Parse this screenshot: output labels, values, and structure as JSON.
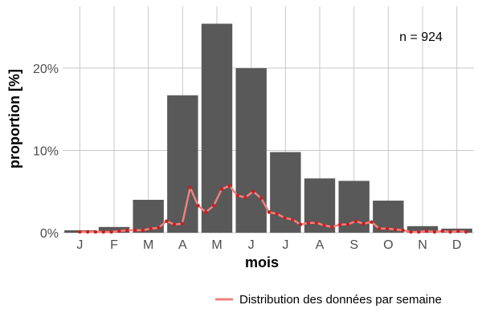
{
  "chart_data": {
    "type": "bar",
    "xlabel": "mois",
    "ylabel": "proportion [%]",
    "annotation": "n = 924",
    "categories": [
      "J",
      "F",
      "M",
      "A",
      "M",
      "J",
      "J",
      "A",
      "S",
      "O",
      "N",
      "D"
    ],
    "ylim": [
      0,
      27.5
    ],
    "y_ticks": [
      0,
      10,
      20
    ],
    "y_tick_labels": [
      "0%",
      "10%",
      "20%"
    ],
    "grid": true,
    "legend_position": "bottom-right",
    "bar_series": {
      "values": [
        0.3,
        0.7,
        4.0,
        16.7,
        25.4,
        20.0,
        9.8,
        6.6,
        6.3,
        3.9,
        0.8,
        0.5
      ]
    },
    "line_series": {
      "name": "Distribution des données par semaine",
      "x": [
        1.0,
        1.23,
        1.46,
        1.69,
        1.92,
        2.15,
        2.38,
        2.61,
        2.84,
        3.07,
        3.3,
        3.53,
        3.76,
        3.99,
        4.22,
        4.45,
        4.68,
        4.91,
        5.14,
        5.37,
        5.6,
        5.83,
        6.06,
        6.29,
        6.52,
        6.75,
        6.98,
        7.21,
        7.44,
        7.67,
        7.9,
        8.13,
        8.36,
        8.59,
        8.82,
        9.05,
        9.28,
        9.51,
        9.74,
        9.97,
        10.2,
        10.43,
        10.66,
        10.89,
        11.12,
        11.35,
        11.58,
        11.81,
        12.04,
        12.27
      ],
      "values": [
        0.1,
        0.1,
        0.1,
        0.1,
        0.1,
        0.2,
        0.3,
        0.3,
        0.3,
        0.5,
        0.6,
        1.4,
        1.0,
        1.1,
        5.5,
        3.3,
        2.5,
        3.3,
        5.3,
        5.7,
        4.5,
        4.3,
        5.0,
        4.2,
        2.5,
        2.3,
        1.8,
        1.6,
        1.0,
        1.2,
        1.2,
        0.9,
        0.7,
        1.0,
        1.0,
        1.4,
        1.1,
        1.3,
        0.5,
        0.5,
        0.4,
        0.3,
        0.1,
        0.1,
        0.2,
        0.1,
        0.2,
        0.1,
        0.2,
        0.1
      ]
    },
    "colors": {
      "bar": "#595959",
      "line": "#f08080",
      "line_points": "#cc1f1f",
      "grid": "#c8c8c8",
      "tick_label": "#4d4d4d"
    }
  }
}
